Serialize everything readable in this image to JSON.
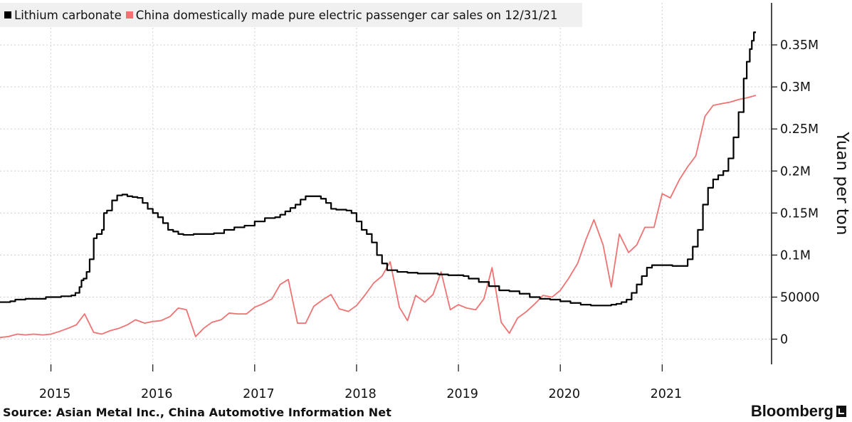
{
  "legend": {
    "series1_label": "Lithium carbonate",
    "series2_label": "China domestically made pure electric passenger car sales on 12/31/21"
  },
  "source": "Source: Asian Metal Inc., China Automotive Information Net",
  "brand": "Bloomberg",
  "colors": {
    "lithium": "#000000",
    "ev_sales": "#f07272",
    "grid": "#cfcfcf"
  },
  "chart_data": {
    "type": "line",
    "title": "",
    "xlabel": "",
    "ylabel": "Yuan per ton",
    "ylim": [
      -30000,
      400000
    ],
    "xlim": [
      2014.5,
      2021.92
    ],
    "grid": true,
    "legend_placement": "top-left",
    "y_ticks": [
      {
        "value": 0,
        "label": "0"
      },
      {
        "value": 50000,
        "label": "50000"
      },
      {
        "value": 100000,
        "label": "0.1M"
      },
      {
        "value": 150000,
        "label": "0.15M"
      },
      {
        "value": 200000,
        "label": "0.2M"
      },
      {
        "value": 250000,
        "label": "0.25M"
      },
      {
        "value": 300000,
        "label": "0.3M"
      },
      {
        "value": 350000,
        "label": "0.35M"
      }
    ],
    "x_ticks": [
      {
        "value": 2015.0,
        "label": "2015"
      },
      {
        "value": 2016.0,
        "label": "2016"
      },
      {
        "value": 2017.0,
        "label": "2017"
      },
      {
        "value": 2018.0,
        "label": "2018"
      },
      {
        "value": 2019.0,
        "label": "2019"
      },
      {
        "value": 2020.0,
        "label": "2020"
      },
      {
        "value": 2021.0,
        "label": "2021"
      }
    ],
    "series": [
      {
        "name": "Lithium carbonate",
        "color": "#000000",
        "step": true,
        "x": [
          2014.5,
          2014.6,
          2014.65,
          2014.75,
          2014.85,
          2014.95,
          2015.1,
          2015.15,
          2015.2,
          2015.24,
          2015.28,
          2015.3,
          2015.32,
          2015.35,
          2015.38,
          2015.42,
          2015.45,
          2015.5,
          2015.52,
          2015.55,
          2015.6,
          2015.65,
          2015.7,
          2015.75,
          2015.8,
          2015.85,
          2015.9,
          2015.95,
          2016.0,
          2016.05,
          2016.1,
          2016.15,
          2016.2,
          2016.25,
          2016.3,
          2016.35,
          2016.4,
          2016.5,
          2016.6,
          2016.7,
          2016.8,
          2016.9,
          2017.0,
          2017.1,
          2017.2,
          2017.25,
          2017.3,
          2017.35,
          2017.4,
          2017.45,
          2017.5,
          2017.6,
          2017.65,
          2017.7,
          2017.75,
          2017.8,
          2017.85,
          2017.9,
          2017.95,
          2018.0,
          2018.05,
          2018.1,
          2018.15,
          2018.2,
          2018.25,
          2018.3,
          2018.4,
          2018.5,
          2018.6,
          2018.7,
          2018.8,
          2018.9,
          2019.0,
          2019.05,
          2019.1,
          2019.2,
          2019.3,
          2019.4,
          2019.5,
          2019.6,
          2019.7,
          2019.8,
          2019.9,
          2020.0,
          2020.1,
          2020.2,
          2020.3,
          2020.35,
          2020.4,
          2020.45,
          2020.5,
          2020.55,
          2020.6,
          2020.65,
          2020.7,
          2020.75,
          2020.8,
          2020.85,
          2020.9,
          2021.0,
          2021.05,
          2021.1,
          2021.15,
          2021.2,
          2021.25,
          2021.3,
          2021.35,
          2021.4,
          2021.45,
          2021.5,
          2021.55,
          2021.6,
          2021.65,
          2021.7,
          2021.75,
          2021.8,
          2021.83,
          2021.86,
          2021.88,
          2021.9,
          2021.91,
          2021.92
        ],
        "y": [
          44000,
          45000,
          47000,
          48000,
          48000,
          50000,
          51000,
          51000,
          52000,
          55000,
          62000,
          70000,
          72000,
          80000,
          95000,
          120000,
          125000,
          130000,
          150000,
          153000,
          165000,
          171000,
          172000,
          170000,
          169000,
          168000,
          162000,
          155000,
          150000,
          145000,
          138000,
          130000,
          128000,
          125000,
          124000,
          124000,
          125000,
          125000,
          126000,
          130000,
          133000,
          135000,
          140000,
          144000,
          145000,
          148000,
          152000,
          156000,
          160000,
          166000,
          170000,
          170000,
          167000,
          162000,
          155000,
          154000,
          154000,
          153000,
          150000,
          140000,
          130000,
          125000,
          115000,
          100000,
          90000,
          82000,
          80000,
          79000,
          78000,
          78000,
          77000,
          76000,
          76000,
          75000,
          72000,
          68000,
          63000,
          58000,
          57000,
          54000,
          50000,
          48000,
          47000,
          45000,
          43000,
          41000,
          40000,
          40000,
          40000,
          40000,
          41000,
          42000,
          44000,
          47000,
          55000,
          65000,
          75000,
          85000,
          88000,
          88000,
          88000,
          87000,
          87000,
          87000,
          95000,
          110000,
          130000,
          160000,
          180000,
          190000,
          195000,
          200000,
          215000,
          240000,
          270000,
          310000,
          330000,
          345000,
          355000,
          365000,
          365000,
          365000
        ]
      },
      {
        "name": "China domestically made pure electric passenger car sales on 12/31/21",
        "color": "#f07272",
        "step": false,
        "x": [
          2014.5,
          2014.58,
          2014.67,
          2014.75,
          2014.83,
          2014.92,
          2015.0,
          2015.08,
          2015.17,
          2015.25,
          2015.33,
          2015.42,
          2015.5,
          2015.58,
          2015.67,
          2015.75,
          2015.83,
          2015.92,
          2016.0,
          2016.08,
          2016.17,
          2016.25,
          2016.33,
          2016.42,
          2016.5,
          2016.58,
          2016.67,
          2016.75,
          2016.83,
          2016.92,
          2017.0,
          2017.08,
          2017.17,
          2017.25,
          2017.33,
          2017.42,
          2017.5,
          2017.58,
          2017.67,
          2017.75,
          2017.83,
          2017.92,
          2018.0,
          2018.08,
          2018.17,
          2018.25,
          2018.33,
          2018.42,
          2018.5,
          2018.58,
          2018.67,
          2018.75,
          2018.83,
          2018.92,
          2019.0,
          2019.08,
          2019.17,
          2019.25,
          2019.33,
          2019.42,
          2019.5,
          2019.58,
          2019.67,
          2019.75,
          2019.83,
          2019.92,
          2020.0,
          2020.08,
          2020.17,
          2020.25,
          2020.33,
          2020.42,
          2020.5,
          2020.58,
          2020.67,
          2020.75,
          2020.83,
          2020.92,
          2021.0,
          2021.08,
          2021.17,
          2021.25,
          2021.33,
          2021.42,
          2021.5,
          2021.58,
          2021.67,
          2021.75,
          2021.83,
          2021.92
        ],
        "y": [
          2000,
          3000,
          6000,
          5000,
          6000,
          5000,
          6000,
          9000,
          13000,
          17000,
          30000,
          8000,
          6000,
          10000,
          13000,
          17000,
          23000,
          19000,
          21000,
          22000,
          27000,
          37000,
          35000,
          3000,
          13000,
          20000,
          23000,
          31000,
          30000,
          30000,
          38000,
          42000,
          48000,
          65000,
          71000,
          19000,
          19000,
          39000,
          47000,
          53000,
          36000,
          33000,
          40000,
          52000,
          67000,
          75000,
          92000,
          38000,
          22000,
          52000,
          44000,
          53000,
          80000,
          35000,
          41000,
          37000,
          35000,
          48000,
          85000,
          20000,
          7000,
          25000,
          33000,
          42000,
          52000,
          50000,
          58000,
          72000,
          90000,
          118000,
          142000,
          112000,
          62000,
          125000,
          103000,
          112000,
          133000,
          133000,
          173000,
          168000,
          190000,
          205000,
          218000,
          265000,
          278000,
          280000,
          282000,
          285000,
          287000,
          290000
        ]
      }
    ]
  }
}
